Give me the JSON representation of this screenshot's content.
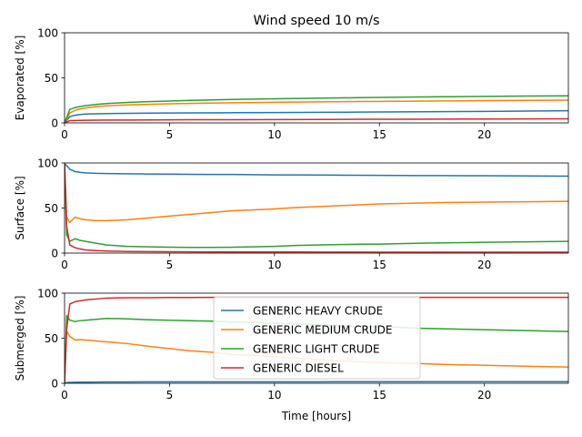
{
  "figure": {
    "title": "Wind speed 10 m/s",
    "xlabel": "Time [hours]"
  },
  "chart_data": [
    {
      "type": "line",
      "title": "Wind speed 10 m/s",
      "ylabel": "Evaporated [%]",
      "xlim": [
        0,
        24
      ],
      "ylim": [
        0,
        100
      ],
      "xticks": [
        0,
        5,
        10,
        15,
        20
      ],
      "yticks": [
        0,
        50,
        100
      ],
      "grid": false,
      "x": [
        0,
        0.25,
        0.5,
        0.75,
        1,
        1.5,
        2,
        3,
        4,
        5,
        6,
        8,
        10,
        12,
        14,
        16,
        18,
        20,
        22,
        24
      ],
      "series": [
        {
          "name": "GENERIC HEAVY CRUDE",
          "color": "#1f77b4",
          "values": [
            0,
            7,
            8.5,
            9.3,
            9.8,
            10.1,
            10.3,
            10.6,
            10.8,
            11,
            11.1,
            11.3,
            11.5,
            11.7,
            12,
            12.2,
            12.5,
            12.8,
            13.1,
            13.5
          ]
        },
        {
          "name": "GENERIC MEDIUM CRUDE",
          "color": "#ff7f0e",
          "values": [
            0,
            11,
            14,
            15.5,
            16.5,
            18,
            19,
            20,
            20.6,
            21.2,
            21.6,
            22.3,
            22.8,
            23.3,
            23.7,
            24,
            24.4,
            24.7,
            25,
            25.3
          ]
        },
        {
          "name": "GENERIC LIGHT CRUDE",
          "color": "#2ca02c",
          "values": [
            0,
            15,
            17,
            18.2,
            19.2,
            20.5,
            21.5,
            22.7,
            23.6,
            24.3,
            25,
            26,
            26.8,
            27.4,
            28,
            28.5,
            29,
            29.4,
            29.8,
            30
          ]
        },
        {
          "name": "GENERIC DIESEL",
          "color": "#d62728",
          "values": [
            0,
            2.5,
            2.7,
            2.8,
            2.9,
            3,
            3.1,
            3.2,
            3.3,
            3.4,
            3.5,
            3.6,
            3.7,
            3.8,
            4,
            4.1,
            4.2,
            4.3,
            4.4,
            4.6
          ]
        }
      ]
    },
    {
      "type": "line",
      "ylabel": "Surface [%]",
      "xlim": [
        0,
        24
      ],
      "ylim": [
        0,
        100
      ],
      "xticks": [
        0,
        5,
        10,
        15,
        20
      ],
      "yticks": [
        0,
        50,
        100
      ],
      "grid": false,
      "x": [
        0,
        0.1,
        0.25,
        0.5,
        0.75,
        1,
        1.5,
        2,
        3,
        4,
        5,
        6,
        7,
        8,
        9,
        10,
        11,
        12,
        13,
        14,
        15,
        16,
        17,
        18,
        19,
        20,
        21,
        22,
        23,
        24
      ],
      "series": [
        {
          "name": "GENERIC HEAVY CRUDE",
          "color": "#1f77b4",
          "values": [
            99,
            97,
            93,
            90.5,
            89.5,
            89,
            88.5,
            88.3,
            88,
            87.8,
            87.6,
            87.4,
            87.3,
            87.2,
            87,
            86.8,
            86.8,
            86.6,
            86.5,
            86.3,
            86.2,
            86.1,
            86,
            86,
            85.9,
            85.8,
            85.7,
            85.6,
            85.5,
            85.3
          ]
        },
        {
          "name": "GENERIC MEDIUM CRUDE",
          "color": "#ff7f0e",
          "values": [
            99,
            40,
            34,
            40,
            38,
            37,
            36,
            36,
            37,
            39,
            41,
            43,
            45,
            47,
            48,
            49,
            50.5,
            51.5,
            52.5,
            53.5,
            54.5,
            55,
            55.5,
            56,
            56.3,
            56.6,
            56.8,
            57,
            57.2,
            57.5
          ]
        },
        {
          "name": "GENERIC LIGHT CRUDE",
          "color": "#2ca02c",
          "values": [
            99,
            20,
            13,
            16,
            14,
            13,
            11,
            9,
            7.5,
            7,
            6.5,
            6.3,
            6.3,
            6.5,
            7,
            7.5,
            8.5,
            9,
            9.5,
            9.8,
            10,
            10.5,
            11,
            11.3,
            11.6,
            12,
            12.2,
            12.5,
            12.8,
            13
          ]
        },
        {
          "name": "GENERIC DIESEL",
          "color": "#d62728",
          "values": [
            99,
            30,
            9,
            6,
            4.5,
            3.5,
            2.8,
            2.3,
            1.8,
            1.6,
            1.5,
            1.4,
            1.3,
            1.3,
            1.2,
            1.2,
            1.2,
            1.1,
            1.1,
            1.1,
            1,
            1,
            1,
            1,
            1,
            1,
            1,
            1,
            1,
            1
          ]
        }
      ]
    },
    {
      "type": "line",
      "ylabel": "Submerged  [%]",
      "xlabel": "Time [hours]",
      "xlim": [
        0,
        24
      ],
      "ylim": [
        0,
        100
      ],
      "xticks": [
        0,
        5,
        10,
        15,
        20
      ],
      "yticks": [
        0,
        50,
        100
      ],
      "grid": false,
      "legend_position": "center",
      "x": [
        0,
        0.1,
        0.25,
        0.5,
        0.75,
        1,
        1.5,
        2,
        3,
        4,
        5,
        6,
        7,
        8,
        9,
        10,
        11,
        12,
        13,
        14,
        15,
        16,
        17,
        18,
        19,
        20,
        21,
        22,
        23,
        24
      ],
      "series": [
        {
          "name": "GENERIC HEAVY CRUDE",
          "color": "#1f77b4",
          "values": [
            0,
            0.8,
            1,
            1.1,
            1.2,
            1.3,
            1.4,
            1.5,
            1.5,
            1.6,
            1.6,
            1.6,
            1.6,
            1.7,
            1.7,
            1.7,
            1.7,
            1.7,
            1.8,
            1.8,
            1.8,
            1.8,
            1.8,
            1.8,
            1.8,
            1.8,
            1.8,
            1.8,
            1.8,
            1.8
          ]
        },
        {
          "name": "GENERIC MEDIUM CRUDE",
          "color": "#ff7f0e",
          "values": [
            0,
            58,
            52,
            48,
            48.5,
            48,
            47,
            46,
            44,
            41,
            38.5,
            36,
            34.5,
            32,
            31,
            29.5,
            28,
            26.5,
            25,
            24,
            23,
            22.5,
            21.8,
            21,
            20.5,
            20,
            19.5,
            19,
            18.5,
            18
          ]
        },
        {
          "name": "GENERIC LIGHT CRUDE",
          "color": "#2ca02c",
          "values": [
            0,
            75,
            70,
            68.5,
            69.5,
            70,
            71,
            72,
            71.5,
            70.5,
            70,
            69.5,
            69,
            68,
            67.5,
            66.5,
            66,
            65,
            64,
            63.5,
            62.5,
            62,
            61,
            60.5,
            60,
            59.5,
            59,
            58.5,
            58,
            57.5
          ]
        },
        {
          "name": "GENERIC DIESEL",
          "color": "#d62728",
          "values": [
            0,
            60,
            88,
            90.5,
            91.5,
            92.5,
            93.5,
            94.5,
            95,
            95,
            95.2,
            95.2,
            95.3,
            95.3,
            95.3,
            95.3,
            95.3,
            95.3,
            95.3,
            95.3,
            95.3,
            95.3,
            95.3,
            95.3,
            95.3,
            95.3,
            95.3,
            95.3,
            95.3,
            95.3
          ]
        }
      ]
    }
  ]
}
